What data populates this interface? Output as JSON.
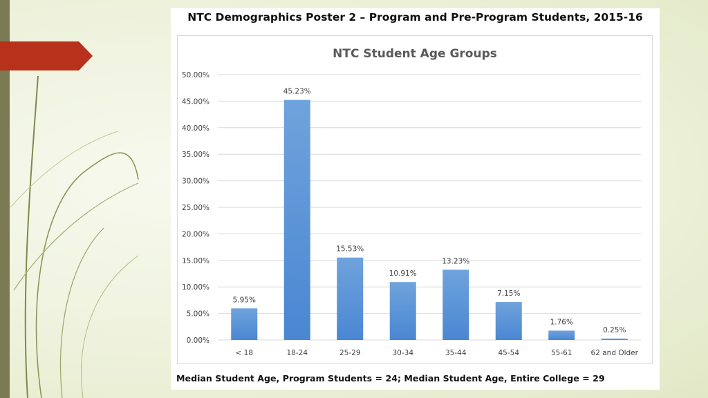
{
  "poster": {
    "title": "NTC Demographics Poster 2 – Program and Pre-Program Students, 2015-16",
    "footnote": "Median Student Age, Program Students = 24; Median Student Age, Entire College = 29"
  },
  "colors": {
    "bar_top": "#6fa3dc",
    "bar_bottom": "#4a86d2",
    "grid": "#d9d9d9",
    "title": "#595959",
    "label": "#404040",
    "ribbon": "#b8311a"
  },
  "chart_data": {
    "type": "bar",
    "title": "NTC Student Age Groups",
    "categories": [
      "< 18",
      "18-24",
      "25-29",
      "30-34",
      "35-44",
      "45-54",
      "55-61",
      "62 and Older"
    ],
    "values": [
      5.95,
      45.23,
      15.53,
      10.91,
      13.23,
      7.15,
      1.76,
      0.25
    ],
    "data_labels": [
      "5.95%",
      "45.23%",
      "15.53%",
      "10.91%",
      "13.23%",
      "7.15%",
      "1.76%",
      "0.25%"
    ],
    "y_ticks": [
      0,
      5,
      10,
      15,
      20,
      25,
      30,
      35,
      40,
      45,
      50
    ],
    "y_tick_labels": [
      "0.00%",
      "5.00%",
      "10.00%",
      "15.00%",
      "20.00%",
      "25.00%",
      "30.00%",
      "35.00%",
      "40.00%",
      "45.00%",
      "50.00%"
    ],
    "ylim": [
      0,
      50
    ],
    "xlabel": "",
    "ylabel": "",
    "grid": true,
    "legend": "none"
  }
}
